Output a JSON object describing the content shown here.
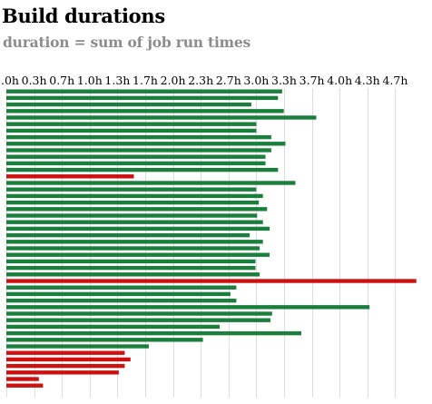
{
  "chart_data": {
    "type": "bar",
    "orientation": "horizontal",
    "title": "Build durations",
    "subtitle": "duration = sum of job run times",
    "x_tick_labels": [
      ".0h",
      "0.3h",
      "0.7h",
      "1.0h",
      "1.3h",
      "1.7h",
      "2.0h",
      "2.3h",
      "2.7h",
      "3.0h",
      "3.3h",
      "3.7h",
      "4.0h",
      "4.3h",
      "4.7h"
    ],
    "x_tick_values": [
      0,
      0.333,
      0.667,
      1.0,
      1.333,
      1.667,
      2.0,
      2.333,
      2.667,
      3.0,
      3.333,
      3.667,
      4.0,
      4.333,
      4.667
    ],
    "xlim": [
      0,
      4.9
    ],
    "grid": true,
    "colors": {
      "passed": "#1a7f3c",
      "failed": "#cc1111",
      "grid": "#dddddd"
    },
    "values": [
      3.31,
      3.26,
      2.94,
      3.33,
      3.72,
      3.0,
      3.0,
      3.18,
      3.35,
      3.18,
      3.11,
      3.11,
      3.26,
      1.53,
      3.47,
      3.0,
      3.08,
      3.03,
      3.13,
      3.01,
      3.08,
      3.16,
      2.92,
      3.08,
      3.04,
      3.16,
      2.99,
      2.99,
      3.04,
      4.92,
      2.76,
      2.69,
      2.76,
      4.36,
      3.19,
      3.17,
      2.56,
      3.54,
      2.36,
      1.71,
      1.42,
      1.49,
      1.42,
      1.35,
      0.39,
      0.44
    ],
    "status": [
      "passed",
      "passed",
      "passed",
      "passed",
      "passed",
      "passed",
      "passed",
      "passed",
      "passed",
      "passed",
      "passed",
      "passed",
      "passed",
      "failed",
      "passed",
      "passed",
      "passed",
      "passed",
      "passed",
      "passed",
      "passed",
      "passed",
      "passed",
      "passed",
      "passed",
      "passed",
      "passed",
      "passed",
      "passed",
      "failed",
      "passed",
      "passed",
      "passed",
      "passed",
      "passed",
      "passed",
      "passed",
      "passed",
      "passed",
      "passed",
      "failed",
      "failed",
      "failed",
      "failed",
      "failed",
      "failed"
    ]
  }
}
